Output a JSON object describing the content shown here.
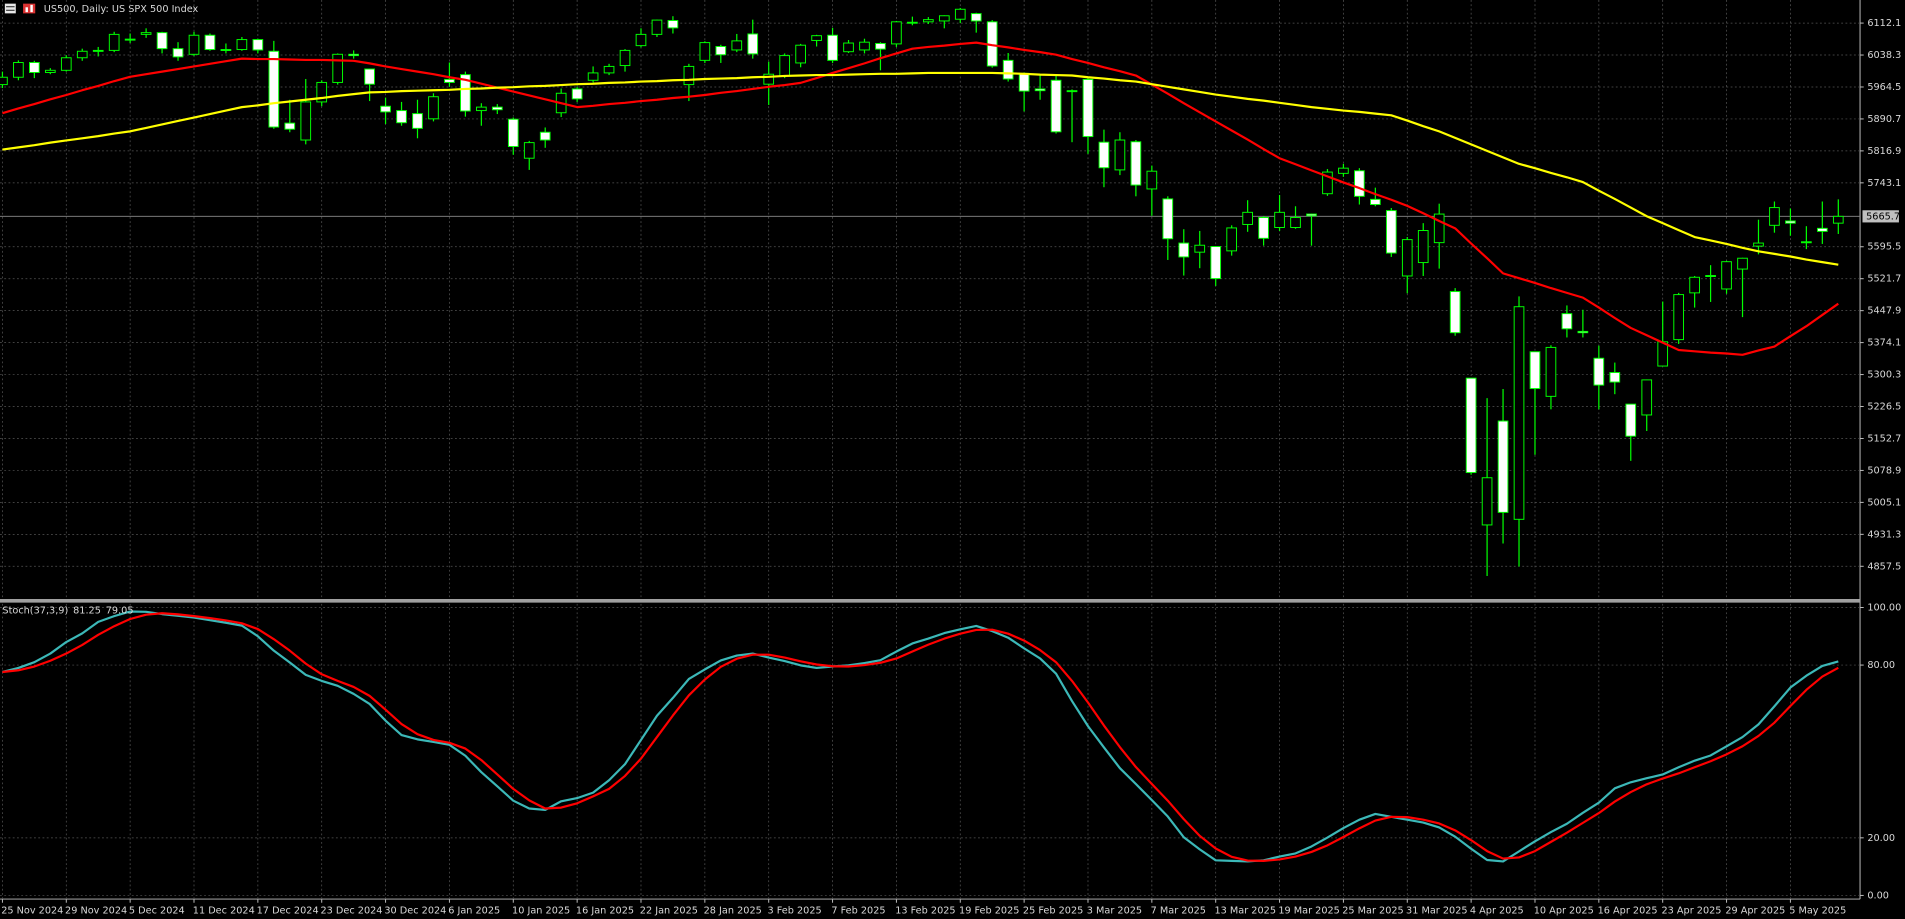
{
  "chart_data": [
    {
      "type": "candlestick",
      "title": "US500, Daily: US SPX 500 Index",
      "categories": [
        "25 Nov 2024",
        null,
        null,
        null,
        "29 Nov 2024",
        null,
        null,
        null,
        "5 Dec 2024",
        null,
        null,
        null,
        "11 Dec 2024",
        null,
        null,
        null,
        "17 Dec 2024",
        null,
        null,
        null,
        "23 Dec 2024",
        null,
        null,
        null,
        "30 Dec 2024",
        null,
        null,
        null,
        "6 Jan 2025",
        null,
        null,
        null,
        "10 Jan 2025",
        null,
        null,
        null,
        "16 Jan 2025",
        null,
        null,
        null,
        "22 Jan 2025",
        null,
        null,
        null,
        "28 Jan 2025",
        null,
        null,
        null,
        "3 Feb 2025",
        null,
        null,
        null,
        "7 Feb 2025",
        null,
        null,
        null,
        "13 Feb 2025",
        null,
        null,
        null,
        "19 Feb 2025",
        null,
        null,
        null,
        "25 Feb 2025",
        null,
        null,
        null,
        "3 Mar 2025",
        null,
        null,
        null,
        "7 Mar 2025",
        null,
        null,
        null,
        "13 Mar 2025",
        null,
        null,
        null,
        "19 Mar 2025",
        null,
        null,
        null,
        "25 Mar 2025",
        null,
        null,
        null,
        "31 Mar 2025",
        null,
        null,
        null,
        "4 Apr 2025",
        null,
        null,
        null,
        "10 Apr 2025",
        null,
        null,
        null,
        "16 Apr 2025",
        null,
        null,
        null,
        "23 Apr 2025",
        null,
        null,
        null,
        "29 Apr 2025",
        null,
        null,
        null,
        "5 May 2025",
        null,
        null,
        null
      ],
      "open": [
        5970,
        5987,
        6021,
        5998,
        6003,
        6032,
        6047,
        6049,
        6075,
        6086,
        6090,
        6053,
        6040,
        6084,
        6051,
        6051,
        6074,
        6047,
        5881,
        5842,
        5930,
        5975,
        6040,
        6006,
        5920,
        5910,
        5903,
        5891,
        5982,
        5993,
        5910,
        5918,
        5890,
        5800,
        5860,
        5905,
        5960,
        5980,
        5997,
        6014,
        6060,
        6086,
        6118,
        5970,
        6026,
        6058,
        6050,
        6087,
        5971,
        5990,
        6020,
        6072,
        6084,
        6046,
        6050,
        6065,
        6064,
        6114,
        6115,
        6117,
        6121,
        6134,
        6115,
        6026,
        5996,
        5960,
        5980,
        5956,
        5982,
        5837,
        5773,
        5838,
        5729,
        5706,
        5604,
        5583,
        5596,
        5586,
        5647,
        5663,
        5640,
        5640,
        5671,
        5718,
        5765,
        5771,
        5705,
        5679,
        5528,
        5559,
        5605,
        5492,
        5292,
        4953,
        5193,
        4966,
        5353,
        5250,
        5441,
        5400,
        5338,
        5305,
        5232,
        5207,
        5320,
        5381,
        5489,
        5529,
        5498,
        5544,
        5597,
        5645,
        5655,
        5606,
        5638,
        5650
      ],
      "high": [
        6000,
        6026,
        6025,
        6008,
        6038,
        6053,
        6057,
        6092,
        6088,
        6100,
        6092,
        6068,
        6092,
        6088,
        6065,
        6080,
        6076,
        6071,
        5935,
        5983,
        5980,
        6042,
        6049,
        6007,
        5940,
        5930,
        5935,
        5950,
        6021,
        6000,
        5927,
        5925,
        5894,
        5840,
        5871,
        5961,
        5965,
        6012,
        6018,
        6052,
        6100,
        6120,
        6128,
        6018,
        6070,
        6062,
        6087,
        6120,
        6023,
        6042,
        6064,
        6085,
        6101,
        6073,
        6076,
        6068,
        6117,
        6127,
        6126,
        6130,
        6147,
        6136,
        6119,
        6043,
        5998,
        5993,
        5994,
        5959,
        5987,
        5866,
        5860,
        5842,
        5783,
        5712,
        5636,
        5632,
        5597,
        5645,
        5703,
        5666,
        5715,
        5689,
        5672,
        5775,
        5787,
        5777,
        5732,
        5685,
        5618,
        5650,
        5695,
        5500,
        5292,
        5246,
        5267,
        5481,
        5353,
        5368,
        5460,
        5450,
        5367,
        5328,
        5232,
        5289,
        5469,
        5489,
        5528,
        5553,
        5563,
        5570,
        5658,
        5700,
        5684,
        5643,
        5700,
        5705
      ],
      "low": [
        5962,
        5980,
        5985,
        5994,
        6000,
        6025,
        6035,
        6045,
        6066,
        6078,
        6042,
        6025,
        6036,
        6048,
        6042,
        6048,
        6042,
        5868,
        5860,
        5832,
        5920,
        5970,
        6030,
        5932,
        5879,
        5875,
        5846,
        5885,
        5965,
        5896,
        5875,
        5902,
        5808,
        5773,
        5824,
        5895,
        5930,
        5975,
        5992,
        6000,
        6056,
        6080,
        6088,
        5932,
        6020,
        6020,
        6045,
        6030,
        5923,
        5985,
        6010,
        6058,
        6020,
        6043,
        6042,
        6003,
        6057,
        6107,
        6110,
        6100,
        6112,
        6090,
        6009,
        5977,
        5908,
        5935,
        5857,
        5837,
        5810,
        5733,
        5761,
        5712,
        5667,
        5565,
        5529,
        5546,
        5505,
        5575,
        5630,
        5598,
        5632,
        5637,
        5598,
        5713,
        5757,
        5693,
        5689,
        5572,
        5488,
        5528,
        5545,
        5390,
        5069,
        4835,
        4910,
        4857,
        5115,
        5220,
        5386,
        5386,
        5220,
        5255,
        5101,
        5170,
        5320,
        5371,
        5455,
        5468,
        5487,
        5433,
        5578,
        5628,
        5621,
        5590,
        5602,
        5625
      ],
      "close": [
        5987,
        6021,
        5998,
        6003,
        6032,
        6047,
        6049,
        6086,
        6075,
        6090,
        6053,
        6034,
        6084,
        6051,
        6051,
        6074,
        6050,
        5872,
        5867,
        5930,
        5975,
        6040,
        6037,
        5971,
        5907,
        5882,
        5869,
        5942,
        5975,
        5909,
        5918,
        5912,
        5827,
        5836,
        5842,
        5950,
        5937,
        5997,
        6012,
        6049,
        6086,
        6119,
        6101,
        6012,
        6067,
        6039,
        6071,
        6041,
        5994,
        6037,
        6061,
        6083,
        6026,
        6066,
        6068,
        6052,
        6115,
        6114,
        6120,
        6129,
        6144,
        6117,
        6013,
        5983,
        5955,
        5956,
        5861,
        5955,
        5850,
        5778,
        5842,
        5738,
        5770,
        5614,
        5572,
        5599,
        5522,
        5639,
        5675,
        5615,
        5675,
        5663,
        5667,
        5768,
        5777,
        5712,
        5693,
        5581,
        5612,
        5633,
        5671,
        5397,
        5074,
        5062,
        4982,
        5457,
        5268,
        5363,
        5406,
        5397,
        5276,
        5283,
        5158,
        5288,
        5376,
        5485,
        5525,
        5529,
        5561,
        5569,
        5604,
        5686,
        5650,
        5607,
        5631,
        5665.7
      ],
      "wick_color": "#00ff00",
      "bull_fill": "#000000",
      "bear_fill": "#ffffff",
      "series": [
        {
          "color": "#ff0000",
          "values": [
            5904,
            5915,
            5925,
            5936,
            5946,
            5957,
            5967,
            5978,
            5988,
            5994,
            6000,
            6006,
            6012,
            6018,
            6024,
            6030,
            6029,
            6029,
            6028,
            6027,
            6027,
            6026,
            6025,
            6019,
            6012,
            6006,
            6000,
            5994,
            5987,
            5981,
            5972,
            5963,
            5954,
            5945,
            5936,
            5927,
            5918,
            5921,
            5925,
            5928,
            5932,
            5935,
            5939,
            5942,
            5946,
            5951,
            5955,
            5960,
            5965,
            5969,
            5974,
            5985,
            5997,
            6008,
            6019,
            6031,
            6042,
            6053,
            6057,
            6060,
            6064,
            6067,
            6061,
            6056,
            6050,
            6045,
            6039,
            6029,
            6020,
            6010,
            6001,
            5991,
            5970,
            5949,
            5927,
            5906,
            5885,
            5864,
            5843,
            5821,
            5800,
            5786,
            5772,
            5758,
            5744,
            5731,
            5717,
            5704,
            5690,
            5673,
            5655,
            5638,
            5603,
            5569,
            5534,
            5523,
            5512,
            5500,
            5489,
            5478,
            5455,
            5431,
            5408,
            5391,
            5374,
            5357,
            5354,
            5351,
            5349,
            5346,
            5356,
            5365,
            5389,
            5412,
            5438,
            5464
          ]
        },
        {
          "color": "#ffff00",
          "values": [
            5820,
            5825,
            5830,
            5836,
            5841,
            5846,
            5851,
            5857,
            5862,
            5870,
            5878,
            5886,
            5894,
            5902,
            5910,
            5918,
            5922,
            5927,
            5931,
            5935,
            5939,
            5944,
            5948,
            5952,
            5953,
            5955,
            5956,
            5957,
            5958,
            5960,
            5961,
            5963,
            5964,
            5966,
            5967,
            5969,
            5971,
            5972,
            5974,
            5975,
            5977,
            5978,
            5980,
            5981,
            5983,
            5984,
            5985,
            5987,
            5988,
            5990,
            5991,
            5992,
            5992,
            5993,
            5994,
            5995,
            5995,
            5996,
            5997,
            5997,
            5997,
            5997,
            5997,
            5996,
            5995,
            5993,
            5992,
            5991,
            5987,
            5984,
            5980,
            5977,
            5971,
            5965,
            5959,
            5953,
            5947,
            5942,
            5937,
            5933,
            5928,
            5923,
            5918,
            5914,
            5910,
            5907,
            5903,
            5899,
            5887,
            5874,
            5862,
            5847,
            5832,
            5817,
            5802,
            5787,
            5777,
            5766,
            5756,
            5745,
            5725,
            5706,
            5686,
            5666,
            5650,
            5634,
            5618,
            5610,
            5602,
            5593,
            5585,
            5579,
            5573,
            5566,
            5560,
            5554
          ]
        }
      ],
      "ylim": [
        4782,
        6165.4
      ],
      "yticks": [
        6112.1,
        6038.3,
        5964.5,
        5890.7,
        5816.9,
        5743.1,
        5595.5,
        5521.7,
        5447.9,
        5374.1,
        5300.3,
        5226.5,
        5152.7,
        5078.9,
        5005.1,
        4931.3,
        4857.5
      ],
      "grid": true,
      "last_price_color": "#c0c0c0"
    },
    {
      "type": "line",
      "title": "Stoch(37,3,9)",
      "series": [
        {
          "color": "#3cb8b8",
          "values": [
            77.6,
            79,
            81,
            84,
            88,
            91,
            95,
            97,
            98.6,
            98.5,
            97.7,
            97.1,
            96.5,
            95.6,
            94.7,
            93.7,
            90,
            85,
            80.9,
            76.6,
            74.5,
            72.8,
            70,
            66.5,
            60.7,
            55.7,
            54.2,
            53.3,
            52.3,
            48.5,
            42.8,
            37.9,
            32.9,
            30.2,
            29.7,
            32.7,
            33.8,
            35.7,
            40,
            45.6,
            54,
            62.4,
            68.6,
            75.2,
            78.5,
            81.6,
            83.3,
            84,
            82.6,
            81.4,
            79.9,
            79,
            79.5,
            79.9,
            80.7,
            81.7,
            84.7,
            87.5,
            89.2,
            91.1,
            92.4,
            93.6,
            91.8,
            89.5,
            85.8,
            82.3,
            77,
            67.5,
            58.8,
            51.4,
            44.2,
            38.7,
            33.1,
            27.4,
            20.2,
            16,
            12.2,
            12,
            11.8,
            12.2,
            13.5,
            14.6,
            17,
            20.1,
            23.4,
            26.3,
            28.3,
            27.3,
            26.3,
            25.3,
            23.6,
            20.4,
            16.2,
            12.3,
            11.8,
            15.3,
            18.8,
            22,
            24.9,
            28.7,
            32.2,
            37.2,
            39.3,
            40.7,
            42,
            44.5,
            46.8,
            48.6,
            51.8,
            55,
            59.4,
            65.7,
            72.2,
            76.3,
            79.7,
            81.25
          ]
        },
        {
          "color": "#ff0000",
          "values": [
            77.6,
            78.2,
            79.5,
            81.5,
            84,
            87,
            90.5,
            93.5,
            96,
            97.5,
            98,
            97.6,
            97,
            96.3,
            95.5,
            94.5,
            92.5,
            89,
            85,
            80.5,
            76.8,
            74.5,
            72.4,
            69.3,
            64.5,
            59.5,
            56,
            54,
            53,
            51,
            47,
            42,
            37,
            33,
            30.2,
            30.5,
            32,
            34.4,
            37,
            41.5,
            47.5,
            55,
            62.5,
            69.5,
            75,
            79.4,
            82.2,
            83.6,
            83.6,
            82.6,
            81.3,
            80.2,
            79.6,
            79.5,
            80,
            80.8,
            82.3,
            84.7,
            87.1,
            89.2,
            90.9,
            92.2,
            92.3,
            90.9,
            88.5,
            85.2,
            81,
            74.5,
            67,
            59,
            51.5,
            44.6,
            38.7,
            32.9,
            26.5,
            20.7,
            16.3,
            13.4,
            12.1,
            12,
            12.5,
            13.5,
            15.1,
            17.4,
            20.3,
            23.3,
            26,
            27.3,
            27.2,
            26.3,
            25,
            22.6,
            19.2,
            15.4,
            12.8,
            13.2,
            15.4,
            18.6,
            21.8,
            25.2,
            28.6,
            32.6,
            35.9,
            38.6,
            40.6,
            42.4,
            44.5,
            46.6,
            49,
            51.8,
            55.4,
            60,
            65.8,
            71.4,
            76,
            79.05
          ]
        }
      ],
      "ylim": [
        0,
        100
      ],
      "yticks": [
        {
          "value": 100,
          "label": "100.00"
        },
        {
          "value": 80,
          "label": "80.00"
        },
        {
          "value": 20,
          "label": "20.00"
        },
        {
          "value": 0,
          "label": "0.00"
        }
      ],
      "grid": true
    }
  ]
}
